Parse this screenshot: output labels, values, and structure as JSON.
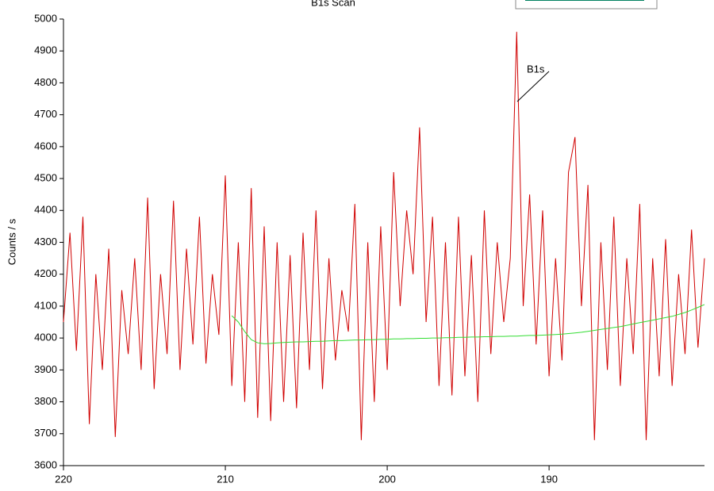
{
  "chart_data": {
    "type": "line",
    "title": "B1s Scan",
    "y_label": "Counts / s",
    "annotation": "B1s",
    "xlim": [
      220,
      180.4
    ],
    "xticks": [
      220,
      210,
      200,
      190
    ],
    "ylim": [
      3600,
      5000
    ],
    "yticks": [
      3600,
      3700,
      3800,
      3900,
      4000,
      4100,
      4200,
      4300,
      4400,
      4500,
      4600,
      4700,
      4800,
      4900,
      5000
    ],
    "x": [
      220,
      219.6,
      219.2,
      218.8,
      218.4,
      218,
      217.6,
      217.2,
      216.8,
      216.4,
      216,
      215.6,
      215.2,
      214.8,
      214.4,
      214,
      213.6,
      213.2,
      212.8,
      212.4,
      212,
      211.6,
      211.2,
      210.8,
      210.4,
      210,
      209.6,
      209.2,
      208.8,
      208.4,
      208,
      207.6,
      207.2,
      206.8,
      206.4,
      206,
      205.6,
      205.2,
      204.8,
      204.4,
      204,
      203.6,
      203.2,
      202.8,
      202.4,
      202,
      201.6,
      201.2,
      200.8,
      200.4,
      200,
      199.6,
      199.2,
      198.8,
      198.4,
      198,
      197.6,
      197.2,
      196.8,
      196.4,
      196,
      195.6,
      195.2,
      194.8,
      194.4,
      194,
      193.6,
      193.2,
      192.8,
      192.4,
      192,
      191.6,
      191.2,
      190.8,
      190.4,
      190,
      189.6,
      189.2,
      188.8,
      188.4,
      188,
      187.6,
      187.2,
      186.8,
      186.4,
      186,
      185.6,
      185.2,
      184.8,
      184.4,
      184,
      183.6,
      183.2,
      182.8,
      182.4,
      182,
      181.6,
      181.2,
      180.8,
      180.4
    ],
    "series": [
      {
        "color": "#d00000",
        "values": [
          4050,
          4330,
          3960,
          4380,
          3730,
          4200,
          3900,
          4280,
          3690,
          4150,
          3950,
          4250,
          3900,
          4440,
          3840,
          4200,
          3950,
          4430,
          3900,
          4280,
          3980,
          4380,
          3920,
          4200,
          4010,
          4510,
          3850,
          4300,
          3800,
          4470,
          3750,
          4350,
          3740,
          4300,
          3800,
          4260,
          3780,
          4330,
          3900,
          4400,
          3840,
          4250,
          3930,
          4150,
          4020,
          4420,
          3680,
          4300,
          3800,
          4350,
          3900,
          4520,
          4100,
          4400,
          4200,
          4660,
          4050,
          4380,
          3850,
          4300,
          3820,
          4380,
          3880,
          4260,
          3800,
          4400,
          3950,
          4300,
          4050,
          4250,
          4960,
          4100,
          4450,
          3980,
          4400,
          3880,
          4250,
          3930,
          4520,
          4630,
          4100,
          4480,
          3680,
          4300,
          3900,
          4380,
          3850,
          4250,
          3950,
          4420,
          3680,
          4250,
          3880,
          4310,
          3850,
          4200,
          3950,
          4340,
          3970,
          4250
        ]
      },
      {
        "color": "#33dd33",
        "values": [
          null,
          null,
          null,
          null,
          null,
          null,
          null,
          null,
          null,
          null,
          null,
          null,
          null,
          null,
          null,
          null,
          null,
          null,
          null,
          null,
          null,
          null,
          null,
          null,
          null,
          null,
          4070,
          4050,
          4020,
          3995,
          3985,
          3982,
          3983,
          3985,
          3986,
          3987,
          3988,
          3988,
          3989,
          3990,
          3990,
          3991,
          3992,
          3992,
          3993,
          3994,
          3994,
          3995,
          3995,
          3996,
          3996,
          3997,
          3997,
          3998,
          3998,
          3999,
          3999,
          4000,
          4000,
          4001,
          4001,
          4002,
          4002,
          4003,
          4003,
          4004,
          4004,
          4005,
          4005,
          4006,
          4006,
          4007,
          4008,
          4008,
          4009,
          4010,
          4011,
          4012,
          4014,
          4016,
          4018,
          4021,
          4024,
          4027,
          4030,
          4033,
          4036,
          4040,
          4044,
          4048,
          4052,
          4056,
          4060,
          4064,
          4068,
          4074,
          4080,
          4088,
          4096,
          4105
        ]
      }
    ]
  }
}
